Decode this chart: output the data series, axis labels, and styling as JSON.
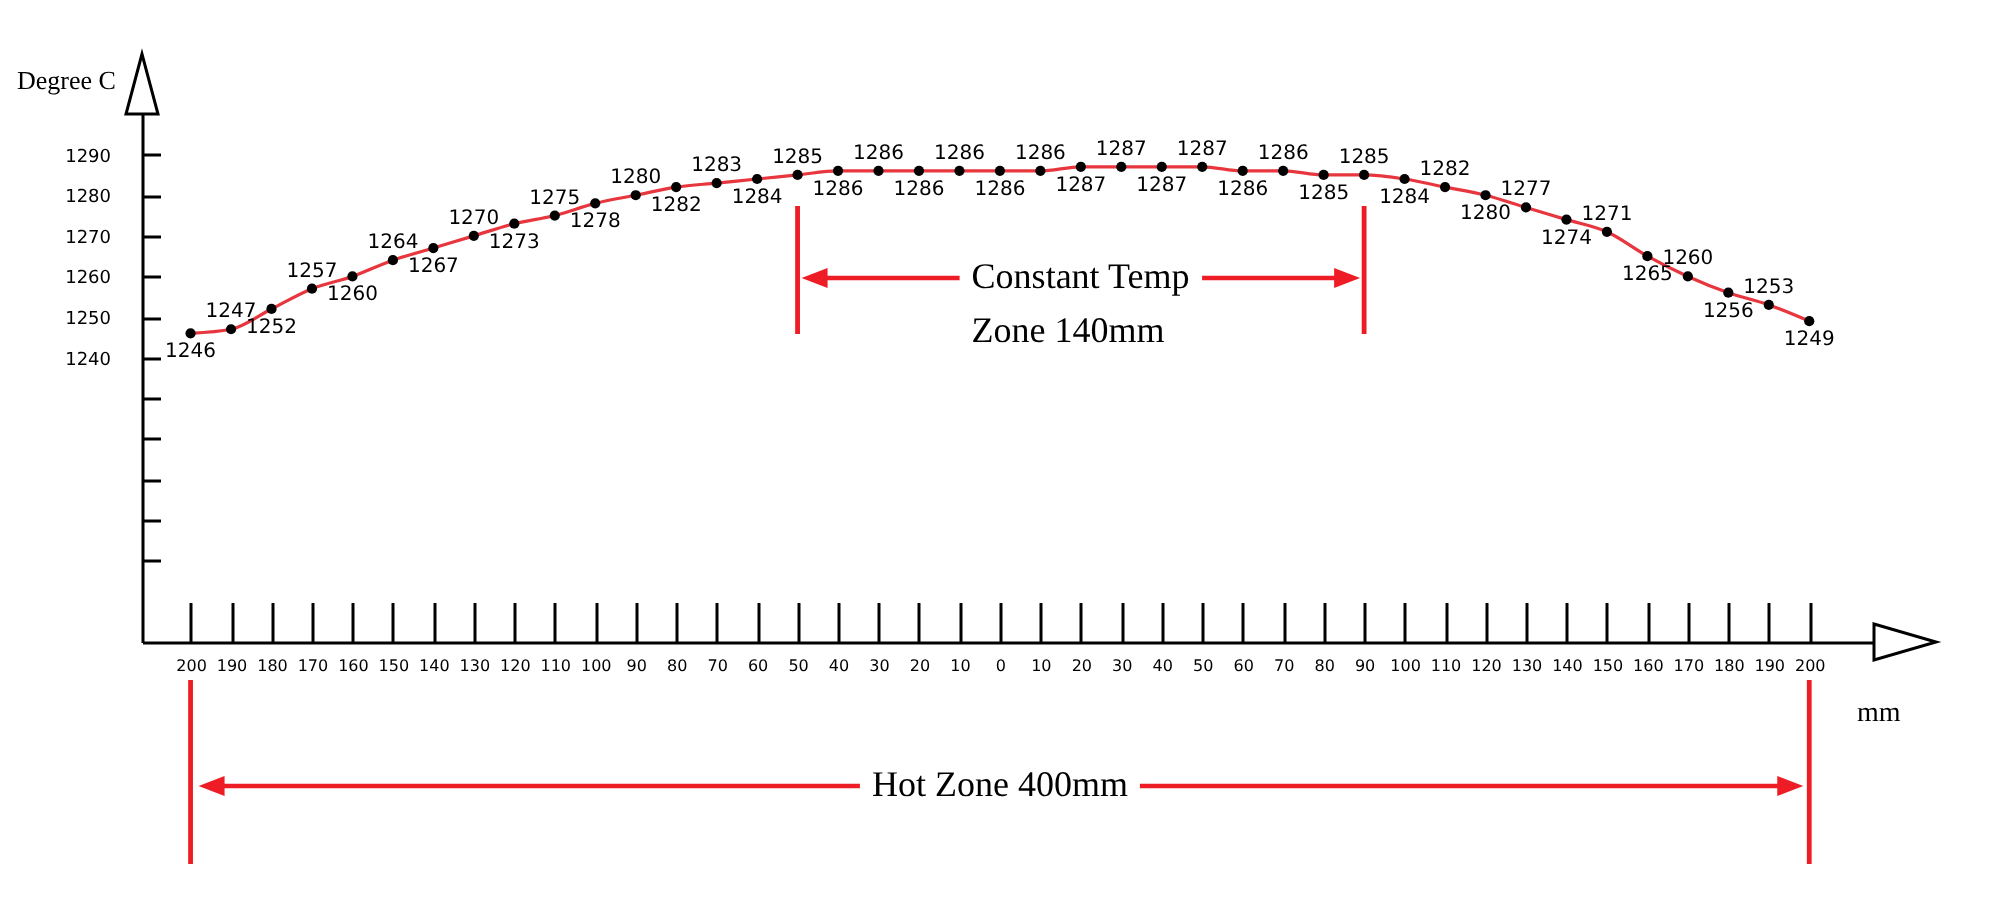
{
  "chart_data": {
    "type": "line",
    "xlabel": "mm",
    "ylabel": "Degree C",
    "x": [
      -200,
      -190,
      -180,
      -170,
      -160,
      -150,
      -140,
      -130,
      -120,
      -110,
      -100,
      -90,
      -80,
      -70,
      -60,
      -50,
      -40,
      -30,
      -20,
      -10,
      0,
      10,
      20,
      30,
      40,
      50,
      60,
      70,
      80,
      90,
      100,
      110,
      120,
      130,
      140,
      150,
      160,
      170,
      180,
      190,
      200
    ],
    "series": [
      {
        "color": "#e8363e",
        "values": [
          1246,
          1247,
          1252,
          1257,
          1260,
          1264,
          1267,
          1270,
          1273,
          1275,
          1278,
          1280,
          1282,
          1283,
          1284,
          1285,
          1286,
          1286,
          1286,
          1286,
          1286,
          1286,
          1287,
          1287,
          1287,
          1287,
          1286,
          1286,
          1285,
          1285,
          1284,
          1282,
          1280,
          1277,
          1274,
          1271,
          1265,
          1260,
          1256,
          1253,
          1249
        ]
      }
    ],
    "xlim": [
      -212,
      216
    ],
    "xticks": [
      200,
      190,
      180,
      170,
      160,
      150,
      140,
      130,
      120,
      110,
      100,
      90,
      80,
      70,
      60,
      50,
      40,
      30,
      20,
      10,
      0,
      {
        "value": -10,
        "label": "10"
      },
      {
        "value": -20,
        "label": "20"
      },
      {
        "value": -30,
        "label": "30"
      },
      {
        "value": -40,
        "label": "40"
      },
      {
        "value": -50,
        "label": "50"
      },
      {
        "value": -60,
        "label": "60"
      },
      {
        "value": -70,
        "label": "70"
      },
      {
        "value": -80,
        "label": "80"
      },
      {
        "value": -90,
        "label": "90"
      },
      {
        "value": -100,
        "label": "100"
      },
      {
        "value": -110,
        "label": "110"
      },
      {
        "value": -120,
        "label": "120"
      },
      {
        "value": -130,
        "label": "130"
      },
      {
        "value": -140,
        "label": "140"
      },
      {
        "value": -150,
        "label": "150"
      },
      {
        "value": -160,
        "label": "160"
      },
      {
        "value": -170,
        "label": "170"
      },
      {
        "value": -180,
        "label": "180"
      },
      {
        "value": -190,
        "label": "190"
      },
      {
        "value": -200,
        "label": "200"
      }
    ],
    "ylim": [
      1170,
      1300
    ],
    "yticks": [
      {
        "value": 1190,
        "label": null
      },
      {
        "value": 1200,
        "label": null
      },
      {
        "value": 1210,
        "label": null
      },
      {
        "value": 1220,
        "label": null
      },
      {
        "value": 1230,
        "label": null
      },
      1240,
      1250,
      1260,
      1270,
      1280,
      1290
    ],
    "marker": "circle",
    "data_labels": true,
    "ref_lines": [
      {
        "axis": "x",
        "value": -50,
        "color": "#ee1c25"
      },
      {
        "axis": "x",
        "value": 90,
        "color": "#ee1c25"
      }
    ],
    "annotations": [
      "Constant Temp",
      "Zone 140mm",
      "Hot Zone 400mm"
    ]
  }
}
